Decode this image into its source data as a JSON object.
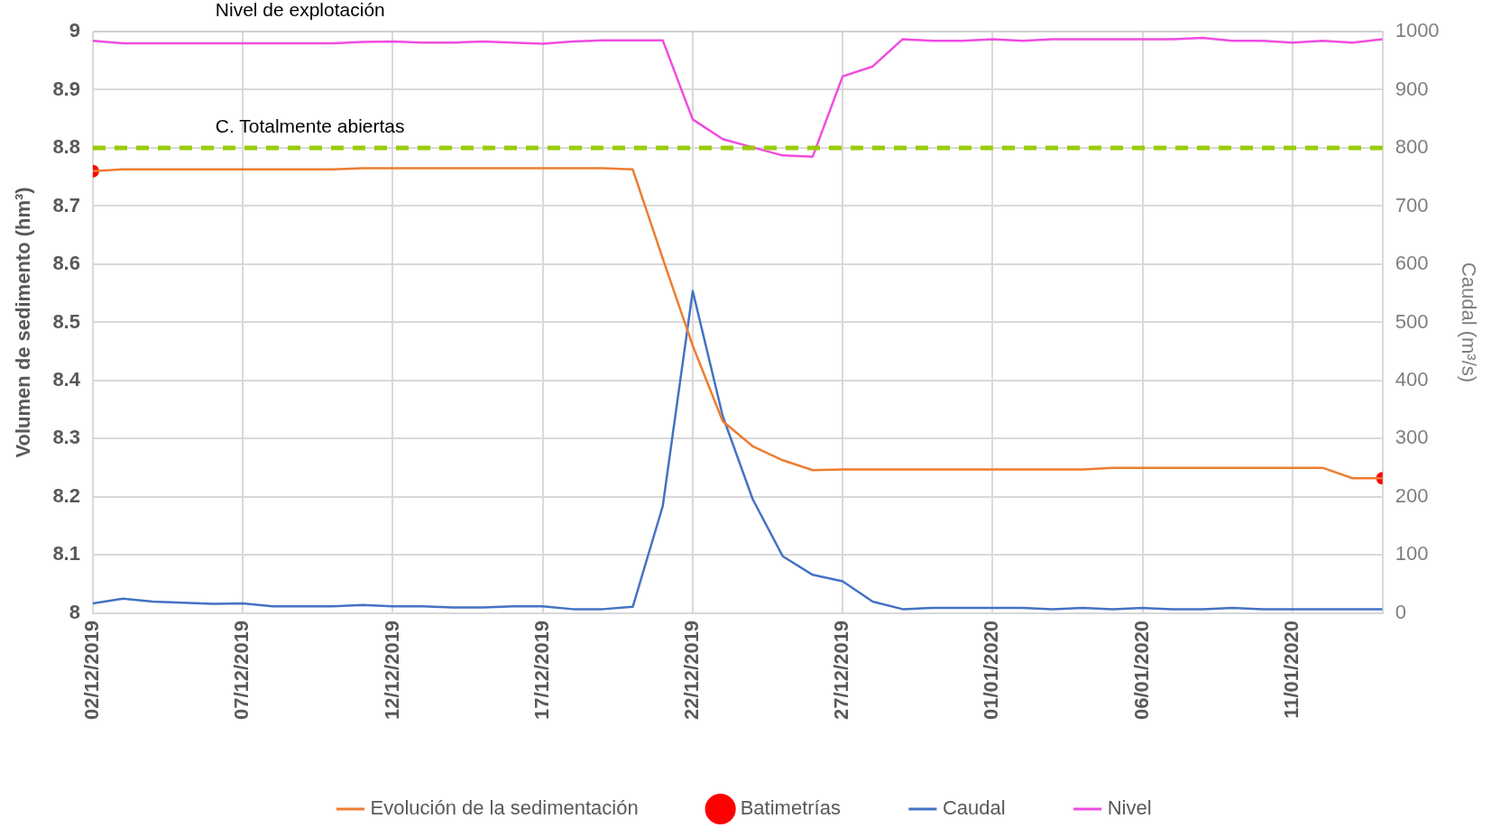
{
  "chart_data": {
    "type": "line",
    "x": [
      "2019-12-02",
      "2019-12-03",
      "2019-12-04",
      "2019-12-05",
      "2019-12-06",
      "2019-12-07",
      "2019-12-08",
      "2019-12-09",
      "2019-12-10",
      "2019-12-11",
      "2019-12-12",
      "2019-12-13",
      "2019-12-14",
      "2019-12-15",
      "2019-12-16",
      "2019-12-17",
      "2019-12-18",
      "2019-12-19",
      "2019-12-20",
      "2019-12-21",
      "2019-12-22",
      "2019-12-23",
      "2019-12-24",
      "2019-12-25",
      "2019-12-26",
      "2019-12-27",
      "2019-12-28",
      "2019-12-29",
      "2019-12-30",
      "2019-12-31",
      "2020-01-01",
      "2020-01-02",
      "2020-01-03",
      "2020-01-04",
      "2020-01-05",
      "2020-01-06",
      "2020-01-07",
      "2020-01-08",
      "2020-01-09",
      "2020-01-10",
      "2020-01-11",
      "2020-01-12",
      "2020-01-13",
      "2020-01-14"
    ],
    "series": [
      {
        "name": "Evolución de la sedimentación",
        "color": "#ed7d31",
        "values": [
          8.76,
          8.763,
          8.763,
          8.763,
          8.763,
          8.763,
          8.763,
          8.763,
          8.763,
          8.765,
          8.765,
          8.765,
          8.765,
          8.765,
          8.765,
          8.765,
          8.765,
          8.765,
          8.763,
          8.61,
          8.46,
          8.33,
          8.287,
          8.263,
          8.246,
          8.247,
          8.247,
          8.247,
          8.247,
          8.247,
          8.247,
          8.247,
          8.247,
          8.247,
          8.25,
          8.25,
          8.25,
          8.25,
          8.25,
          8.25,
          8.25,
          8.25,
          8.232,
          8.232
        ]
      },
      {
        "name": "Batimetrías",
        "type": "scatter",
        "marker": "circle",
        "color": "#ff0000",
        "x": [
          "2019-12-02",
          "2020-01-14"
        ],
        "values": [
          8.76,
          8.232
        ]
      },
      {
        "name": "Caudal",
        "color": "#4472c4",
        "axis": "y2",
        "values": [
          17,
          25,
          20,
          18,
          16,
          17,
          12,
          12,
          12,
          14,
          12,
          12,
          10,
          10,
          12,
          12,
          7,
          7,
          11,
          184,
          554,
          339,
          196,
          98,
          66,
          55,
          20,
          7,
          9,
          9,
          9,
          9,
          7,
          9,
          7,
          9,
          7,
          7,
          9,
          7,
          7,
          7,
          7,
          7
        ]
      },
      {
        "name": "Nivel",
        "color": "#f04ce0",
        "axis": "y2",
        "values": [
          984,
          980,
          980,
          980,
          980,
          980,
          980,
          980,
          980,
          982,
          983,
          981,
          981,
          983,
          981,
          979,
          983,
          985,
          985,
          985,
          849,
          815,
          801,
          787,
          785,
          923,
          940,
          987,
          984,
          984,
          987,
          984,
          987,
          987,
          987,
          987,
          987,
          989,
          984,
          984,
          981,
          984,
          981,
          987
        ]
      }
    ],
    "ylabel": "Volumen de sedimento (hm³)",
    "y2label": "Caudal (m³/s)",
    "xlim": [
      "2019-12-02",
      "2020-01-14"
    ],
    "xticks": [
      {
        "value": "2019-12-02",
        "label": "02/12/2019"
      },
      {
        "value": "2019-12-07",
        "label": "07/12/2019"
      },
      {
        "value": "2019-12-12",
        "label": "12/12/2019"
      },
      {
        "value": "2019-12-17",
        "label": "17/12/2019"
      },
      {
        "value": "2019-12-22",
        "label": "22/12/2019"
      },
      {
        "value": "2019-12-27",
        "label": "27/12/2019"
      },
      {
        "value": "2020-01-01",
        "label": "01/01/2020"
      },
      {
        "value": "2020-01-06",
        "label": "06/01/2020"
      },
      {
        "value": "2020-01-11",
        "label": "11/01/2020"
      }
    ],
    "ylim": [
      8,
      9
    ],
    "yticks": [
      8,
      8.1,
      8.2,
      8.3,
      8.4,
      8.5,
      8.6,
      8.7,
      8.8,
      8.9,
      9
    ],
    "y2lim": [
      0,
      1000
    ],
    "y2ticks": [
      0,
      100,
      200,
      300,
      400,
      500,
      600,
      700,
      800,
      900,
      1000
    ],
    "ref_lines": [
      {
        "axis": "y",
        "value": 9,
        "label": "Nivel de explotación",
        "color": "#d0d0d0",
        "line_style": "solid"
      },
      {
        "axis": "y",
        "value": 8.8,
        "label": "C. Totalmente abiertas",
        "color": "#99cc00",
        "line_style": "dashed"
      }
    ],
    "grid": true,
    "legend": "bottom",
    "line_style": "solid"
  }
}
